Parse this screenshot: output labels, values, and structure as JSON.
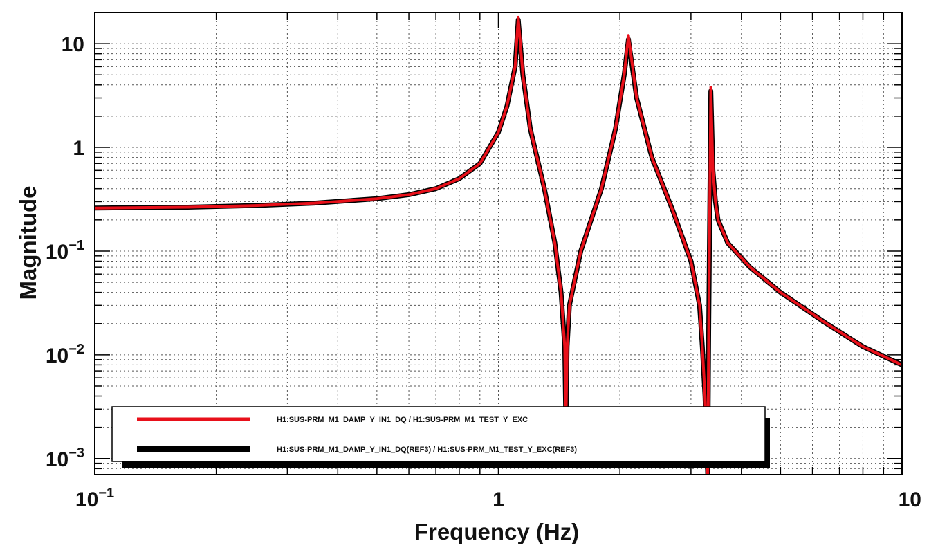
{
  "chart_data": {
    "type": "line",
    "xlabel": "Frequency (Hz)",
    "ylabel": "Magnitude",
    "xscale": "log",
    "yscale": "log",
    "xlim": [
      0.1,
      10
    ],
    "ylim": [
      0.0007,
      20
    ],
    "grid": true,
    "grid_style": "dotted",
    "legend_placement": "bottom-left",
    "x_ticks": [
      {
        "value": 0.1,
        "base": "10",
        "exp": "−1"
      },
      {
        "value": 1,
        "base": "1",
        "exp": ""
      },
      {
        "value": 10,
        "base": "10",
        "exp": ""
      }
    ],
    "y_ticks": [
      {
        "value": 0.001,
        "base": "10",
        "exp": "−3"
      },
      {
        "value": 0.01,
        "base": "10",
        "exp": "−2"
      },
      {
        "value": 0.1,
        "base": "10",
        "exp": "−1"
      },
      {
        "value": 1,
        "base": "1",
        "exp": ""
      },
      {
        "value": 10,
        "base": "10",
        "exp": ""
      }
    ],
    "series": [
      {
        "name": "H1:SUS-PRM_M1_DAMP_Y_IN1_DQ / H1:SUS-PRM_M1_TEST_Y_EXC",
        "color": "#e8101a",
        "x": [
          0.1,
          0.17,
          0.25,
          0.35,
          0.5,
          0.6,
          0.7,
          0.8,
          0.9,
          1.0,
          1.05,
          1.1,
          1.12,
          1.15,
          1.2,
          1.3,
          1.38,
          1.43,
          1.46,
          1.47,
          1.48,
          1.5,
          1.6,
          1.8,
          1.95,
          2.05,
          2.1,
          2.2,
          2.4,
          2.7,
          3.0,
          3.15,
          3.2,
          3.25,
          3.3,
          3.32,
          3.36,
          3.4,
          3.45,
          3.5,
          3.7,
          4.2,
          5.0,
          6.5,
          8.0,
          10.0
        ],
        "y": [
          0.26,
          0.265,
          0.275,
          0.29,
          0.32,
          0.35,
          0.4,
          0.5,
          0.7,
          1.4,
          2.5,
          6.0,
          18.0,
          5.0,
          1.5,
          0.4,
          0.12,
          0.04,
          0.012,
          0.002,
          0.012,
          0.03,
          0.1,
          0.4,
          1.5,
          5.0,
          12.0,
          3.0,
          0.8,
          0.25,
          0.08,
          0.03,
          0.012,
          0.004,
          0.0007,
          0.02,
          3.8,
          0.6,
          0.3,
          0.2,
          0.12,
          0.07,
          0.04,
          0.02,
          0.012,
          0.008
        ]
      },
      {
        "name": "H1:SUS-PRM_M1_DAMP_Y_IN1_DQ(REF3) / H1:SUS-PRM_M1_TEST_Y_EXC(REF3)",
        "color": "#000000",
        "x": [
          0.1,
          0.17,
          0.25,
          0.35,
          0.5,
          0.6,
          0.7,
          0.8,
          0.9,
          1.0,
          1.05,
          1.1,
          1.12,
          1.15,
          1.2,
          1.3,
          1.38,
          1.43,
          1.46,
          1.47,
          1.48,
          1.5,
          1.6,
          1.8,
          1.95,
          2.05,
          2.1,
          2.2,
          2.4,
          2.7,
          3.0,
          3.15,
          3.2,
          3.25,
          3.3,
          3.32,
          3.36,
          3.4,
          3.45,
          3.5,
          3.7,
          4.2,
          5.0,
          6.5,
          8.0,
          10.0
        ],
        "y": [
          0.26,
          0.265,
          0.275,
          0.29,
          0.32,
          0.35,
          0.4,
          0.5,
          0.7,
          1.4,
          2.5,
          6.0,
          17.0,
          5.0,
          1.5,
          0.4,
          0.12,
          0.04,
          0.012,
          0.002,
          0.012,
          0.03,
          0.1,
          0.4,
          1.5,
          5.0,
          11.0,
          3.0,
          0.8,
          0.25,
          0.08,
          0.03,
          0.012,
          0.004,
          0.0007,
          0.02,
          3.5,
          0.6,
          0.3,
          0.2,
          0.12,
          0.07,
          0.04,
          0.02,
          0.012,
          0.008
        ]
      }
    ]
  }
}
